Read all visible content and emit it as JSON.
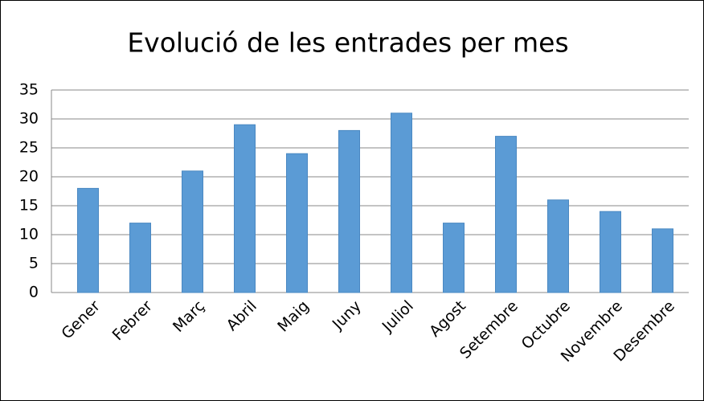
{
  "chart_data": {
    "type": "bar",
    "title": "Evolució de les entrades per mes",
    "categories": [
      "Gener",
      "Febrer",
      "Març",
      "Abril",
      "Maig",
      "Juny",
      "Juliol",
      "Agost",
      "Setembre",
      "Octubre",
      "Novembre",
      "Desembre"
    ],
    "values": [
      18,
      12,
      21,
      29,
      24,
      28,
      31,
      12,
      27,
      16,
      14,
      11
    ],
    "color": "#5b9bd5",
    "ylim": [
      0,
      35
    ],
    "yticks": [
      0,
      5,
      10,
      15,
      20,
      25,
      30,
      35
    ],
    "grid": true
  }
}
